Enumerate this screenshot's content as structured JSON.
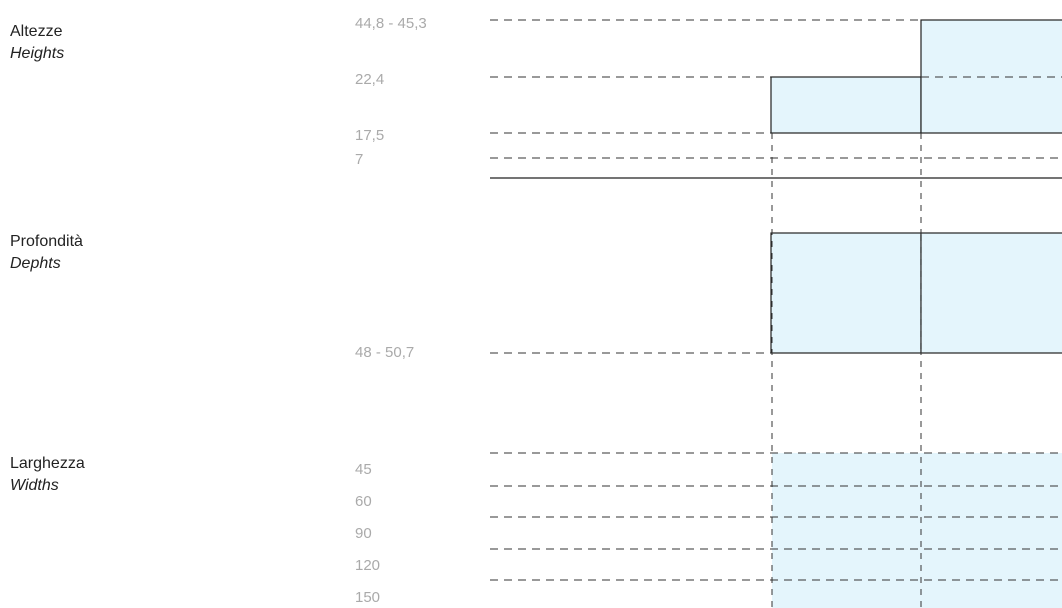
{
  "sections": [
    {
      "title": "Altezze",
      "subtitle": "Heights",
      "dimensions": [
        "44,8 - 45,3",
        "22,4",
        "17,5",
        "7"
      ]
    },
    {
      "title": "Profondità",
      "subtitle": "Dephts",
      "dimensions": [
        "48 - 50,7"
      ]
    },
    {
      "title": "Larghezza",
      "subtitle": "Widths",
      "dimensions": [
        "45",
        "60",
        "90",
        "120",
        "150"
      ]
    }
  ]
}
